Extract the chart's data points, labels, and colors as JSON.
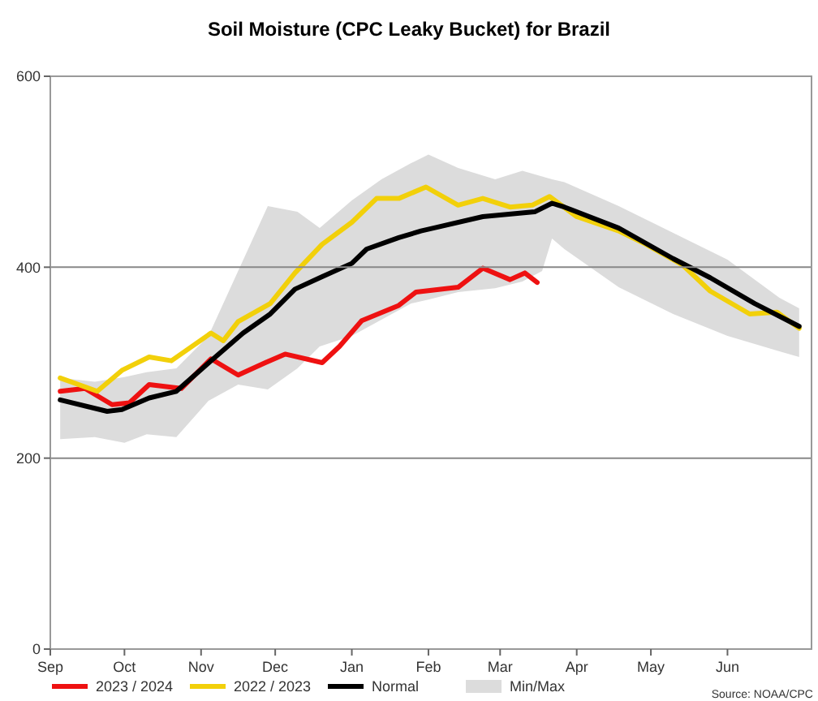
{
  "chart_data": {
    "type": "line",
    "title": "Soil Moisture (CPC Leaky Bucket) for Brazil",
    "xlim": [
      "2023-09-01",
      "2024-07-05"
    ],
    "xticks": [
      {
        "value": "2023-09-01",
        "label": "Sep"
      },
      {
        "value": "2023-10-01",
        "label": "Oct"
      },
      {
        "value": "2023-11-01",
        "label": "Nov"
      },
      {
        "value": "2023-12-01",
        "label": "Dec"
      },
      {
        "value": "2024-01-01",
        "label": "Jan"
      },
      {
        "value": "2024-02-01",
        "label": "Feb"
      },
      {
        "value": "2024-03-01",
        "label": "Mar"
      },
      {
        "value": "2024-04-01",
        "label": "Apr"
      },
      {
        "value": "2024-05-01",
        "label": "May"
      },
      {
        "value": "2024-06-01",
        "label": "Jun"
      }
    ],
    "ylim": [
      0,
      600
    ],
    "yticks": [
      0,
      200,
      400,
      600
    ],
    "grid": "y",
    "legend": "bottom",
    "marker": "none",
    "line_style": "solid",
    "annotations": [
      "Source: NOAA/CPC"
    ],
    "series": [
      {
        "name": "2023 / 2024",
        "color": "#ee1111",
        "x": [
          "2023-09-05",
          "2023-09-15",
          "2023-09-26",
          "2023-10-03",
          "2023-10-11",
          "2023-10-24",
          "2023-11-05",
          "2023-11-16",
          "2023-11-27",
          "2023-12-05",
          "2023-12-20",
          "2023-12-27",
          "2024-01-05",
          "2024-01-20",
          "2024-01-27",
          "2024-02-13",
          "2024-02-23",
          "2024-03-05",
          "2024-03-11",
          "2024-03-16"
        ],
        "values": [
          270,
          273,
          256,
          258,
          277,
          273,
          304,
          287,
          300,
          309,
          300,
          317,
          344,
          360,
          374,
          379,
          399,
          387,
          394,
          384
        ]
      },
      {
        "name": "2022 / 2023",
        "color": "#f2d00a",
        "x": [
          "2023-09-05",
          "2023-09-20",
          "2023-09-30",
          "2023-10-11",
          "2023-10-20",
          "2023-11-05",
          "2023-11-10",
          "2023-11-16",
          "2023-11-29",
          "2023-12-09",
          "2023-12-20",
          "2024-01-01",
          "2024-01-11",
          "2024-01-20",
          "2024-01-31",
          "2024-02-13",
          "2024-02-23",
          "2024-03-05",
          "2024-03-14",
          "2024-03-21",
          "2024-04-01",
          "2024-04-18",
          "2024-04-29",
          "2024-05-14",
          "2024-05-25",
          "2024-06-10",
          "2024-06-21",
          "2024-06-30"
        ],
        "values": [
          284,
          270,
          292,
          306,
          302,
          331,
          323,
          343,
          362,
          394,
          424,
          447,
          472,
          472,
          484,
          465,
          472,
          463,
          465,
          474,
          453,
          438,
          424,
          402,
          375,
          351,
          353,
          336
        ]
      },
      {
        "name": "Normal",
        "color": "#000000",
        "x": [
          "2023-09-05",
          "2023-09-24",
          "2023-09-30",
          "2023-10-11",
          "2023-10-22",
          "2023-11-05",
          "2023-11-18",
          "2023-11-29",
          "2023-12-09",
          "2023-12-20",
          "2024-01-01",
          "2024-01-07",
          "2024-01-20",
          "2024-01-29",
          "2024-02-03",
          "2024-02-23",
          "2024-03-15",
          "2024-03-22",
          "2024-03-27",
          "2024-04-18",
          "2024-05-10",
          "2024-05-25",
          "2024-06-12",
          "2024-06-30"
        ],
        "values": [
          261,
          249,
          251,
          263,
          270,
          302,
          331,
          351,
          377,
          390,
          404,
          419,
          431,
          438,
          441,
          453,
          458,
          467,
          463,
          441,
          409,
          389,
          362,
          338
        ]
      },
      {
        "name": "Min/Max",
        "type": "area",
        "color": "#dcdcdc",
        "x": [
          "2023-09-05",
          "2023-09-19",
          "2023-10-01",
          "2023-10-10",
          "2023-10-22",
          "2023-11-04",
          "2023-11-16",
          "2023-11-28",
          "2023-12-10",
          "2023-12-19",
          "2024-01-01",
          "2024-01-13",
          "2024-01-25",
          "2024-02-01",
          "2024-02-13",
          "2024-02-28",
          "2024-03-10",
          "2024-03-18",
          "2024-03-22",
          "2024-03-27",
          "2024-04-18",
          "2024-05-10",
          "2024-06-01",
          "2024-06-22",
          "2024-06-30"
        ],
        "values": [
          null,
          null,
          null,
          null,
          null,
          null,
          null,
          null,
          null,
          null,
          null,
          null,
          null,
          null,
          null,
          null,
          null,
          null,
          null,
          null,
          null,
          null,
          null,
          null,
          null
        ],
        "lower": [
          220,
          222,
          216,
          225,
          222,
          260,
          277,
          272,
          294,
          317,
          328,
          345,
          362,
          366,
          374,
          378,
          385,
          396,
          430,
          419,
          379,
          351,
          328,
          312,
          306
        ],
        "upper": [
          284,
          280,
          285,
          290,
          294,
          328,
          396,
          464,
          458,
          441,
          470,
          492,
          509,
          518,
          504,
          492,
          501,
          495,
          492,
          489,
          464,
          436,
          408,
          368,
          357
        ]
      }
    ]
  }
}
